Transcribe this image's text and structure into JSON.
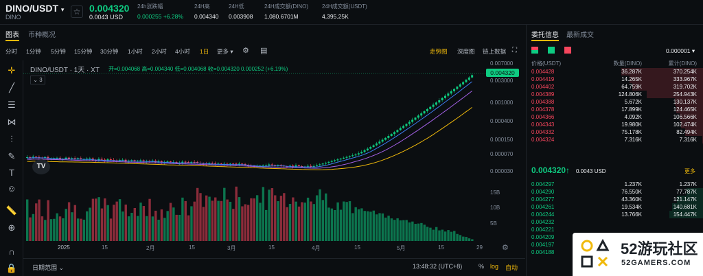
{
  "header": {
    "pair": "DINO/USDT",
    "pair_sub": "DINO",
    "price": "0.004320",
    "price_usd": "0.0043 USD",
    "stats": [
      {
        "label": "24h涨跌幅",
        "value": "0.000255 +6.28%"
      },
      {
        "label": "24H高",
        "value": "0.004340"
      },
      {
        "label": "24H低",
        "value": "0.003908"
      },
      {
        "label": "24H成交额(DINO)",
        "value": "1,080.6701M"
      },
      {
        "label": "24H成交额(USDT)",
        "value": "4,395.25K"
      }
    ]
  },
  "left_tabs": [
    "图表",
    "币种概况"
  ],
  "toolbar": {
    "intervals": [
      "分时",
      "1分钟",
      "5分钟",
      "15分钟",
      "30分钟",
      "1小时",
      "2小时",
      "4小时",
      "1日",
      "更多"
    ],
    "active_interval": "1日",
    "views": [
      "走势图",
      "深度图",
      "链上数据"
    ]
  },
  "chart_info": {
    "title": "DINO/USDT · 1天 · XT",
    "ohlc": "开=0.004068 高=0.004340 低=0.004068 收=0.004320 0.000252 (+6.19%)",
    "indicators_count": "3",
    "price_tag": "0.004320",
    "y_ticks": [
      "0.007000",
      "0.003000",
      "0.001000",
      "0.000400",
      "0.000150",
      "0.000070",
      "0.000030"
    ],
    "vol_ticks": [
      "15B",
      "10B",
      "5B"
    ],
    "x_ticks": [
      "2025",
      "15",
      "2月",
      "15",
      "3月",
      "15",
      "4月",
      "15",
      "5月",
      "15",
      "29"
    ]
  },
  "bottom_bar": {
    "range_label": "日期范围",
    "time": "13:48:32 (UTC+8)",
    "percent": "%",
    "log": "log",
    "auto": "自动"
  },
  "orderbook": {
    "tabs": [
      "委托信息",
      "最新成交"
    ],
    "precision": "0.000001",
    "headers": [
      "价格(USDT)",
      "数量(DINO)",
      "累计(DINO)"
    ],
    "asks": [
      [
        "0.004428",
        "36.287K",
        "370.254K"
      ],
      [
        "0.004419",
        "14.265K",
        "333.967K"
      ],
      [
        "0.004402",
        "64.759K",
        "319.702K"
      ],
      [
        "0.004389",
        "124.806K",
        "254.943K"
      ],
      [
        "0.004388",
        "5.672K",
        "130.137K"
      ],
      [
        "0.004378",
        "17.899K",
        "124.465K"
      ],
      [
        "0.004366",
        "4.092K",
        "106.566K"
      ],
      [
        "0.004343",
        "19.980K",
        "102.474K"
      ],
      [
        "0.004332",
        "75.178K",
        "82.494K"
      ],
      [
        "0.004324",
        "7.316K",
        "7.316K"
      ]
    ],
    "mid_price": "0.004320↑",
    "mid_usd": "0.0043 USD",
    "more": "更多",
    "bids": [
      [
        "0.004297",
        "1.237K",
        "1.237K"
      ],
      [
        "0.004290",
        "76.550K",
        "77.787K"
      ],
      [
        "0.004277",
        "43.360K",
        "121.147K"
      ],
      [
        "0.004261",
        "19.534K",
        "140.681K"
      ],
      [
        "0.004244",
        "13.766K",
        "154.447K"
      ],
      [
        "0.004232",
        "",
        ""
      ],
      [
        "0.004221",
        "",
        ""
      ],
      [
        "0.004209",
        "",
        ""
      ],
      [
        "0.004197",
        "",
        ""
      ],
      [
        "0.004188",
        "",
        ""
      ]
    ]
  },
  "watermark": {
    "title": "52游玩社区",
    "url": "52GAMERS.COM"
  },
  "colors": {
    "up": "#0ecb81",
    "down": "#f6465d",
    "accent": "#f0b90b",
    "ma1": "#3d7df0",
    "ma2": "#a461e6",
    "ma3": "#f0b90b"
  }
}
